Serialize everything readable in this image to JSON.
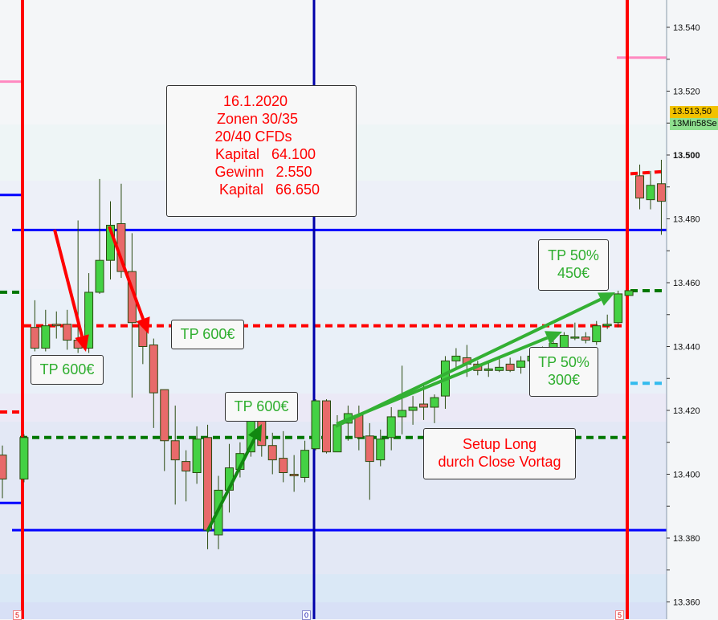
{
  "chart_data": {
    "type": "candlestick",
    "title": "",
    "ylim": [
      13355,
      13550
    ],
    "y_ticks": [
      "13.540",
      "13.520",
      "13.500",
      "13.480",
      "13.460",
      "13.440",
      "13.420",
      "13.400",
      "13.380",
      "13.360"
    ],
    "y_tick_values": [
      13540,
      13520,
      13500,
      13480,
      13460,
      13440,
      13420,
      13400,
      13380,
      13360
    ],
    "grid": false,
    "colors": {
      "up": "#44d144",
      "down": "#e86a6a",
      "wick": "#2a4a10"
    },
    "candles_ohlc": [
      [
        13406,
        13409,
        13392.5,
        13398.5
      ],
      null,
      [
        13398.5,
        13412.5,
        13397.5,
        13411.5
      ],
      [
        13446,
        13454.5,
        13438.5,
        13439.5
      ],
      [
        13439.5,
        13451.5,
        13438.5,
        13446.5
      ],
      [
        13447,
        13451,
        13442.5,
        13446.5
      ],
      [
        13447,
        13451.5,
        13439,
        13442
      ],
      [
        13442,
        13479.5,
        13438,
        13439.5
      ],
      [
        13439.5,
        13463,
        13438,
        13457
      ],
      [
        13457,
        13492.5,
        13456.5,
        13467
      ],
      [
        13467,
        13485.5,
        13461,
        13478
      ],
      [
        13478.5,
        13491,
        13461.5,
        13463.5
      ],
      [
        13463.5,
        13475.5,
        13424,
        13447.5
      ],
      [
        13447.5,
        13449.5,
        13434.5,
        13440
      ],
      [
        13440.5,
        13442.5,
        13414.5,
        13425.5
      ],
      [
        13426.5,
        13426.5,
        13401,
        13410.5
      ],
      [
        13410.5,
        13421.5,
        13390.5,
        13404.5
      ],
      [
        13404,
        13407.5,
        13391.5,
        13401
      ],
      [
        13400.5,
        13415,
        13397,
        13411
      ],
      [
        13411.5,
        13415.5,
        13376.5,
        13382.5
      ],
      [
        13381,
        13399.5,
        13376.5,
        13395
      ],
      [
        13395,
        13409.5,
        13388,
        13402
      ],
      [
        13401.5,
        13410,
        13399,
        13406.5
      ],
      [
        13407,
        13420.5,
        13405.5,
        13417.5
      ],
      [
        13417.5,
        13420.5,
        13405.5,
        13409
      ],
      [
        13409,
        13413,
        13400,
        13404.5
      ],
      [
        13405,
        13413.5,
        13397.5,
        13400.5
      ],
      [
        13400,
        13406,
        13394.5,
        13399.5
      ],
      [
        13399,
        13410.5,
        13397.5,
        13407.5
      ],
      [
        13408,
        13423.5,
        13407.5,
        13423
      ],
      [
        13423,
        13423.5,
        13406.5,
        13407
      ],
      [
        13407,
        13418.5,
        13407,
        13415.5
      ],
      [
        13416,
        13421.5,
        13410.5,
        13419
      ],
      [
        13418.5,
        13421.5,
        13407.5,
        13411.5
      ],
      [
        13412,
        13416,
        13392,
        13404
      ],
      [
        13404.5,
        13414,
        13402.5,
        13411
      ],
      [
        13411.5,
        13421,
        13407.5,
        13418
      ],
      [
        13418,
        13434,
        13412.5,
        13420
      ],
      [
        13420,
        13424.5,
        13415.5,
        13421
      ],
      [
        13422,
        13428.5,
        13417,
        13421
      ],
      [
        13421,
        13425,
        13416,
        13424
      ],
      [
        13424.5,
        13437,
        13420.5,
        13435.5
      ],
      [
        13435.5,
        13439.5,
        13433,
        13437
      ],
      [
        13436.5,
        13440.5,
        13430.5,
        13434.5
      ],
      [
        13434.5,
        13435.5,
        13431,
        13432.5
      ],
      [
        13432.5,
        13435.5,
        13430.5,
        13433
      ],
      [
        13432.5,
        13437,
        13432,
        13433.5
      ],
      [
        13434.5,
        13436.5,
        13432,
        13432.5
      ],
      [
        13433.5,
        13437,
        13431.5,
        13435.5
      ],
      [
        13435.5,
        13438,
        13434,
        13437
      ],
      [
        13437,
        13440,
        13435.5,
        13439
      ],
      [
        13439,
        13442,
        13437.5,
        13441
      ],
      [
        13438,
        13444.5,
        13436.5,
        13443.5
      ],
      [
        13443,
        13447.5,
        13442,
        13443
      ],
      [
        13443,
        13444.5,
        13441,
        13442
      ],
      [
        13441.5,
        13448,
        13440.5,
        13446.5
      ],
      [
        13446.5,
        13450,
        13445.5,
        13447
      ],
      [
        13447.5,
        13457.5,
        13446,
        13456.5
      ],
      [
        13456,
        13457.5,
        13456,
        13457.5
      ],
      [
        13493.5,
        13497,
        13483,
        13486.5
      ],
      [
        13486,
        13495,
        13483,
        13490.5
      ],
      [
        13491,
        13498.5,
        13475,
        13485.5
      ]
    ],
    "levels": [
      {
        "kind": "zone-line",
        "price": 13476.5,
        "color": "#0000ff",
        "style": "solid"
      },
      {
        "kind": "zone-line",
        "price": 13382.5,
        "color": "#0000ff",
        "style": "solid"
      },
      {
        "kind": "prev-level",
        "price": 13446.5,
        "color": "#ff0000",
        "style": "dashed"
      },
      {
        "kind": "prev-close",
        "price": 13411.5,
        "color": "#007700",
        "style": "dashed"
      },
      {
        "kind": "prev-day-blue-1",
        "price": 13487.5,
        "color": "#0000ff",
        "style": "solid"
      },
      {
        "kind": "prev-day-blue-2",
        "price": 13391,
        "color": "#0000ff",
        "style": "solid"
      },
      {
        "kind": "prev-day-pink",
        "price": 13523,
        "color": "#ff88c0",
        "style": "solid"
      },
      {
        "kind": "prev-day-red",
        "price": 13419.5,
        "color": "#ff0000",
        "style": "dashed"
      },
      {
        "kind": "prev-day-green",
        "price": 13457,
        "color": "#007700",
        "style": "dashed"
      },
      {
        "kind": "next-day-pink",
        "price": 13530.5,
        "color": "#ff88c0",
        "style": "solid"
      },
      {
        "kind": "next-day-green",
        "price": 13457.5,
        "color": "#007700",
        "style": "dashed"
      },
      {
        "kind": "next-day-cyan",
        "price": 13428.5,
        "color": "#33bbee",
        "style": "dashed"
      },
      {
        "kind": "next-day-red",
        "price": 13494.5,
        "color": "#ff0000",
        "style": "dashed"
      }
    ],
    "current_price": "13.513,50",
    "countdown": "13Min58Se",
    "annotations": {
      "info": [
        "16.1.2020",
        "Zonen 30/35",
        "20/40 CFDs",
        "Kapital   64.100",
        "Gewinn   2.550",
        "Kapital   66.650"
      ],
      "tp1": "TP 600€",
      "tp2": "TP 600€",
      "tp3": "TP 600€",
      "tp4_line1": "TP 50%",
      "tp4_line2": "450€",
      "tp5_line1": "TP 50%",
      "tp5_line2": "300€",
      "setup_line1": "Setup Long",
      "setup_line2": "durch Close Vortag"
    },
    "session_markers": [
      "5",
      "0",
      "5"
    ]
  }
}
